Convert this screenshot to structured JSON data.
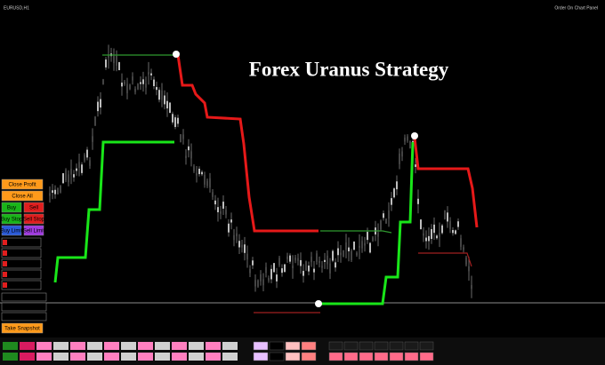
{
  "header": {
    "symbol": "EURUSD,H1",
    "panel_label": "Order On Chart Panel"
  },
  "title": "Forex Uranus Strategy",
  "panel": {
    "buttons": [
      "Close Profit",
      "Close All",
      "Buy",
      "Sell",
      "Buy Stop",
      "Sell Stop",
      "Buy Limit",
      "Sell Limit"
    ],
    "snapshot": "Take Snapshot"
  }
}
